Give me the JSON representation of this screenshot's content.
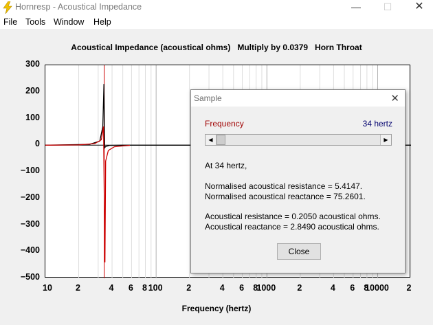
{
  "window": {
    "title": "Hornresp - Acoustical Impedance"
  },
  "menu": [
    "File",
    "Tools",
    "Window",
    "Help"
  ],
  "plot": {
    "title": "Acoustical Impedance (acoustical ohms)   Multiply by 0.0379   Horn Throat",
    "xlabel": "Frequency (hertz)",
    "y_ticks": [
      "300",
      "200",
      "100",
      "0",
      "−100",
      "−200",
      "−300",
      "−400",
      "−500"
    ],
    "x_ticks": [
      "10",
      "2",
      "4",
      "6",
      "8",
      "100",
      "2",
      "4",
      "6",
      "8",
      "1000",
      "2",
      "4",
      "6",
      "8",
      "10000",
      "2"
    ]
  },
  "chart_data": {
    "type": "line",
    "x_scale": "log",
    "xlim": [
      10,
      20000
    ],
    "ylim": [
      -500,
      300
    ],
    "xlabel": "Frequency (hertz)",
    "ylabel": "",
    "title": "Acoustical Impedance (acoustical ohms)   Multiply by 0.0379   Horn Throat",
    "cursor_x": 34,
    "series": [
      {
        "color": "#000000",
        "x": [
          10,
          25,
          31,
          33,
          33.8,
          34,
          34.3,
          35,
          38,
          50,
          100,
          1000,
          10000,
          20000
        ],
        "y": [
          0,
          3,
          15,
          70,
          230,
          120,
          -10,
          -5,
          -1,
          0,
          0,
          0,
          0,
          0
        ]
      },
      {
        "color": "#cc0000",
        "x": [
          10,
          20,
          28,
          32,
          33.5,
          34.5,
          35,
          37,
          42,
          50,
          58
        ],
        "y": [
          0,
          1,
          6,
          20,
          70,
          -440,
          -60,
          -20,
          -6,
          -3,
          -1
        ]
      }
    ]
  },
  "dialog": {
    "title": "Sample",
    "frequency_label": "Frequency",
    "frequency_value": "34 hertz",
    "slider_value": 34,
    "line1": "At 34 hertz,",
    "line2": "Normalised acoustical resistance = 5.4147.",
    "line3": "Normalised acoustical reactance = 75.2601.",
    "line4": "Acoustical resistance = 0.2050 acoustical ohms.",
    "line5": "Acoustical reactance = 2.8490 acoustical ohms.",
    "close_label": "Close"
  }
}
